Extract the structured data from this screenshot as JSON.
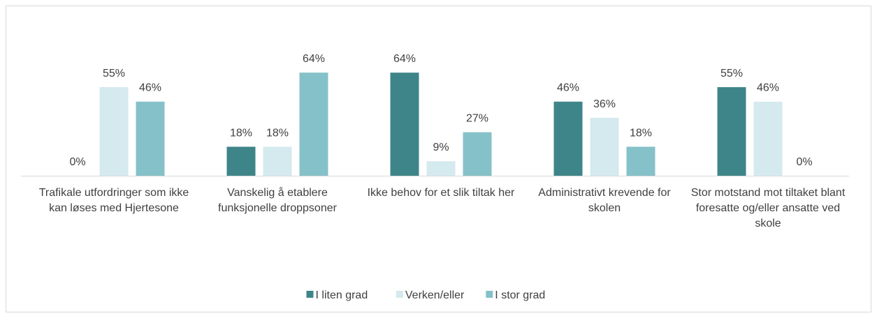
{
  "chart_data": {
    "type": "bar",
    "categories": [
      "Trafikale utfordringer som ikke kan løses med Hjertesone",
      "Vanskelig å etablere funksjonelle droppsoner",
      "Ikke behov for et slik tiltak her",
      "Administrativt krevende for skolen",
      "Stor motstand mot tiltaket blant foresatte og/eller ansatte ved skole"
    ],
    "series": [
      {
        "name": "I liten grad",
        "color": "#3e8589",
        "values": [
          0,
          18,
          64,
          46,
          55
        ],
        "value_labels": [
          "0%",
          "18%",
          "64%",
          "46%",
          "55%"
        ]
      },
      {
        "name": "Verken/eller",
        "color": "#d5eaee",
        "values": [
          55,
          18,
          9,
          36,
          46
        ],
        "value_labels": [
          "55%",
          "18%",
          "9%",
          "36%",
          "46%"
        ]
      },
      {
        "name": "I stor grad",
        "color": "#85c1c8",
        "values": [
          46,
          64,
          27,
          18,
          0
        ],
        "value_labels": [
          "46%",
          "64%",
          "27%",
          "18%",
          "0%"
        ]
      }
    ],
    "legend": "bottom"
  }
}
